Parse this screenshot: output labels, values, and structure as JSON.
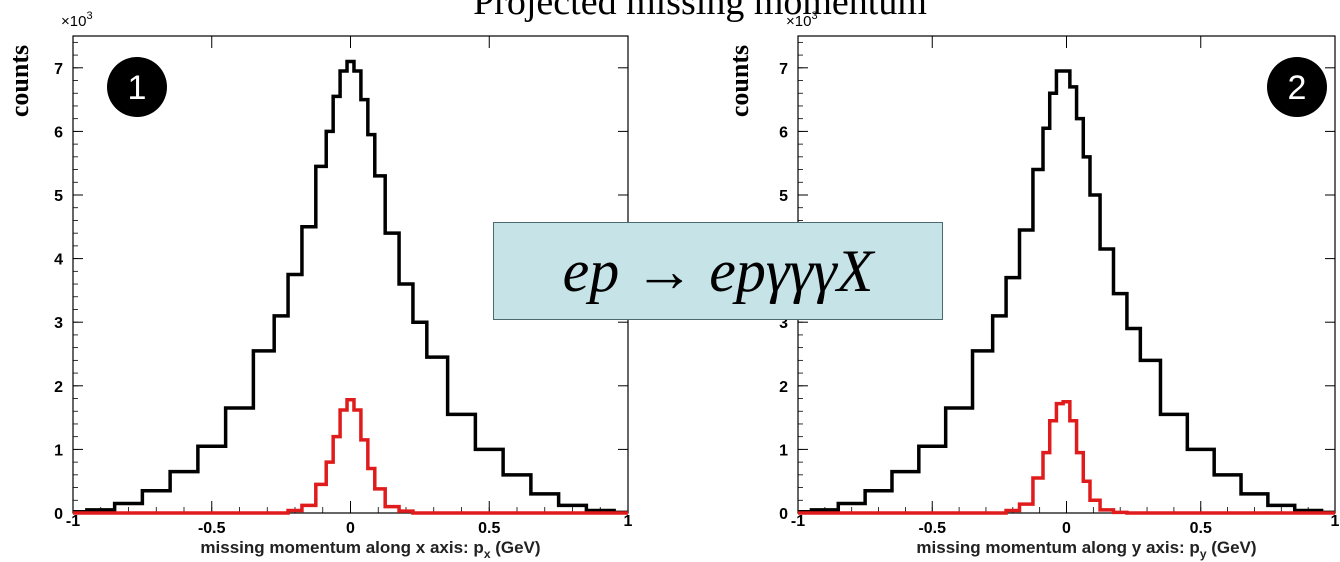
{
  "title": "Projected missing momentum",
  "banner": "ep → epγγγX",
  "colors": {
    "black_series": "#000000",
    "red_series": "#e01b1b",
    "badge": "#000000",
    "banner_bg": "#c6e4e8"
  },
  "chart_data": [
    {
      "type": "line",
      "panel_number": "1",
      "ylabel": "counts",
      "xlabel": "missing momentum along x axis: p",
      "xlabel_sub": "x",
      "xlabel_unit": " (GeV)",
      "y_multiplier": "×10",
      "y_multiplier_exp": "3",
      "xlim": [
        -1,
        1
      ],
      "ylim": [
        0,
        7.5
      ],
      "x_ticks": [
        -1,
        -0.5,
        0,
        0.5,
        1
      ],
      "x_tick_labels": [
        "-1",
        "-0.5",
        "0",
        "0.5",
        "1"
      ],
      "y_ticks": [
        0,
        1,
        2,
        3,
        4,
        5,
        6,
        7
      ],
      "y_tick_labels": [
        "0",
        "1",
        "2",
        "3",
        "4",
        "5",
        "6",
        "7"
      ],
      "x": [
        -1.0,
        -0.9,
        -0.8,
        -0.7,
        -0.6,
        -0.5,
        -0.4,
        -0.3,
        -0.25,
        -0.2,
        -0.15,
        -0.1,
        -0.075,
        -0.05,
        -0.025,
        0.0,
        0.025,
        0.05,
        0.075,
        0.1,
        0.15,
        0.2,
        0.25,
        0.3,
        0.4,
        0.5,
        0.6,
        0.7,
        0.8,
        0.9,
        1.0
      ],
      "series": [
        {
          "values": [
            0.02,
            0.05,
            0.15,
            0.35,
            0.65,
            1.05,
            1.65,
            2.55,
            3.1,
            3.75,
            4.5,
            5.45,
            6.0,
            6.55,
            6.95,
            7.1,
            6.95,
            6.5,
            5.95,
            5.3,
            4.4,
            3.6,
            3.0,
            2.45,
            1.55,
            1.0,
            0.6,
            0.3,
            0.12,
            0.04,
            0.01
          ]
        },
        {
          "values": [
            0,
            0,
            0,
            0,
            0,
            0,
            0,
            0,
            0,
            0.04,
            0.12,
            0.45,
            0.8,
            1.2,
            1.62,
            1.78,
            1.62,
            1.15,
            0.7,
            0.38,
            0.1,
            0.03,
            0,
            0,
            0,
            0,
            0,
            0,
            0,
            0,
            0
          ]
        }
      ]
    },
    {
      "type": "line",
      "panel_number": "2",
      "ylabel": "counts",
      "xlabel": "missing momentum along y axis: p",
      "xlabel_sub": "y",
      "xlabel_unit": " (GeV)",
      "y_multiplier": "×10",
      "y_multiplier_exp": "3",
      "xlim": [
        -1,
        1
      ],
      "ylim": [
        0,
        7.5
      ],
      "x_ticks": [
        -1,
        -0.5,
        0,
        0.5,
        1
      ],
      "x_tick_labels": [
        "-1",
        "-0.5",
        "0",
        "0.5",
        "1"
      ],
      "y_ticks": [
        0,
        1,
        2,
        3,
        4,
        5,
        6,
        7
      ],
      "y_tick_labels": [
        "0",
        "1",
        "2",
        "3",
        "4",
        "5",
        "6",
        "7"
      ],
      "x": [
        -1.0,
        -0.9,
        -0.8,
        -0.7,
        -0.6,
        -0.5,
        -0.4,
        -0.3,
        -0.25,
        -0.2,
        -0.15,
        -0.1,
        -0.075,
        -0.05,
        -0.025,
        0.0,
        0.025,
        0.05,
        0.075,
        0.1,
        0.15,
        0.2,
        0.25,
        0.3,
        0.4,
        0.5,
        0.6,
        0.7,
        0.8,
        0.9,
        1.0
      ],
      "series": [
        {
          "values": [
            0.02,
            0.05,
            0.15,
            0.35,
            0.65,
            1.05,
            1.65,
            2.55,
            3.1,
            3.7,
            4.45,
            5.4,
            6.05,
            6.6,
            6.95,
            6.95,
            6.7,
            6.2,
            5.6,
            5.0,
            4.15,
            3.45,
            2.9,
            2.4,
            1.55,
            1.0,
            0.6,
            0.3,
            0.12,
            0.04,
            0.01
          ]
        },
        {
          "values": [
            0,
            0,
            0,
            0,
            0,
            0,
            0,
            0,
            0,
            0.04,
            0.14,
            0.55,
            0.95,
            1.45,
            1.72,
            1.75,
            1.45,
            0.95,
            0.5,
            0.2,
            0.05,
            0.01,
            0,
            0,
            0,
            0,
            0,
            0,
            0,
            0,
            0
          ]
        }
      ]
    }
  ]
}
